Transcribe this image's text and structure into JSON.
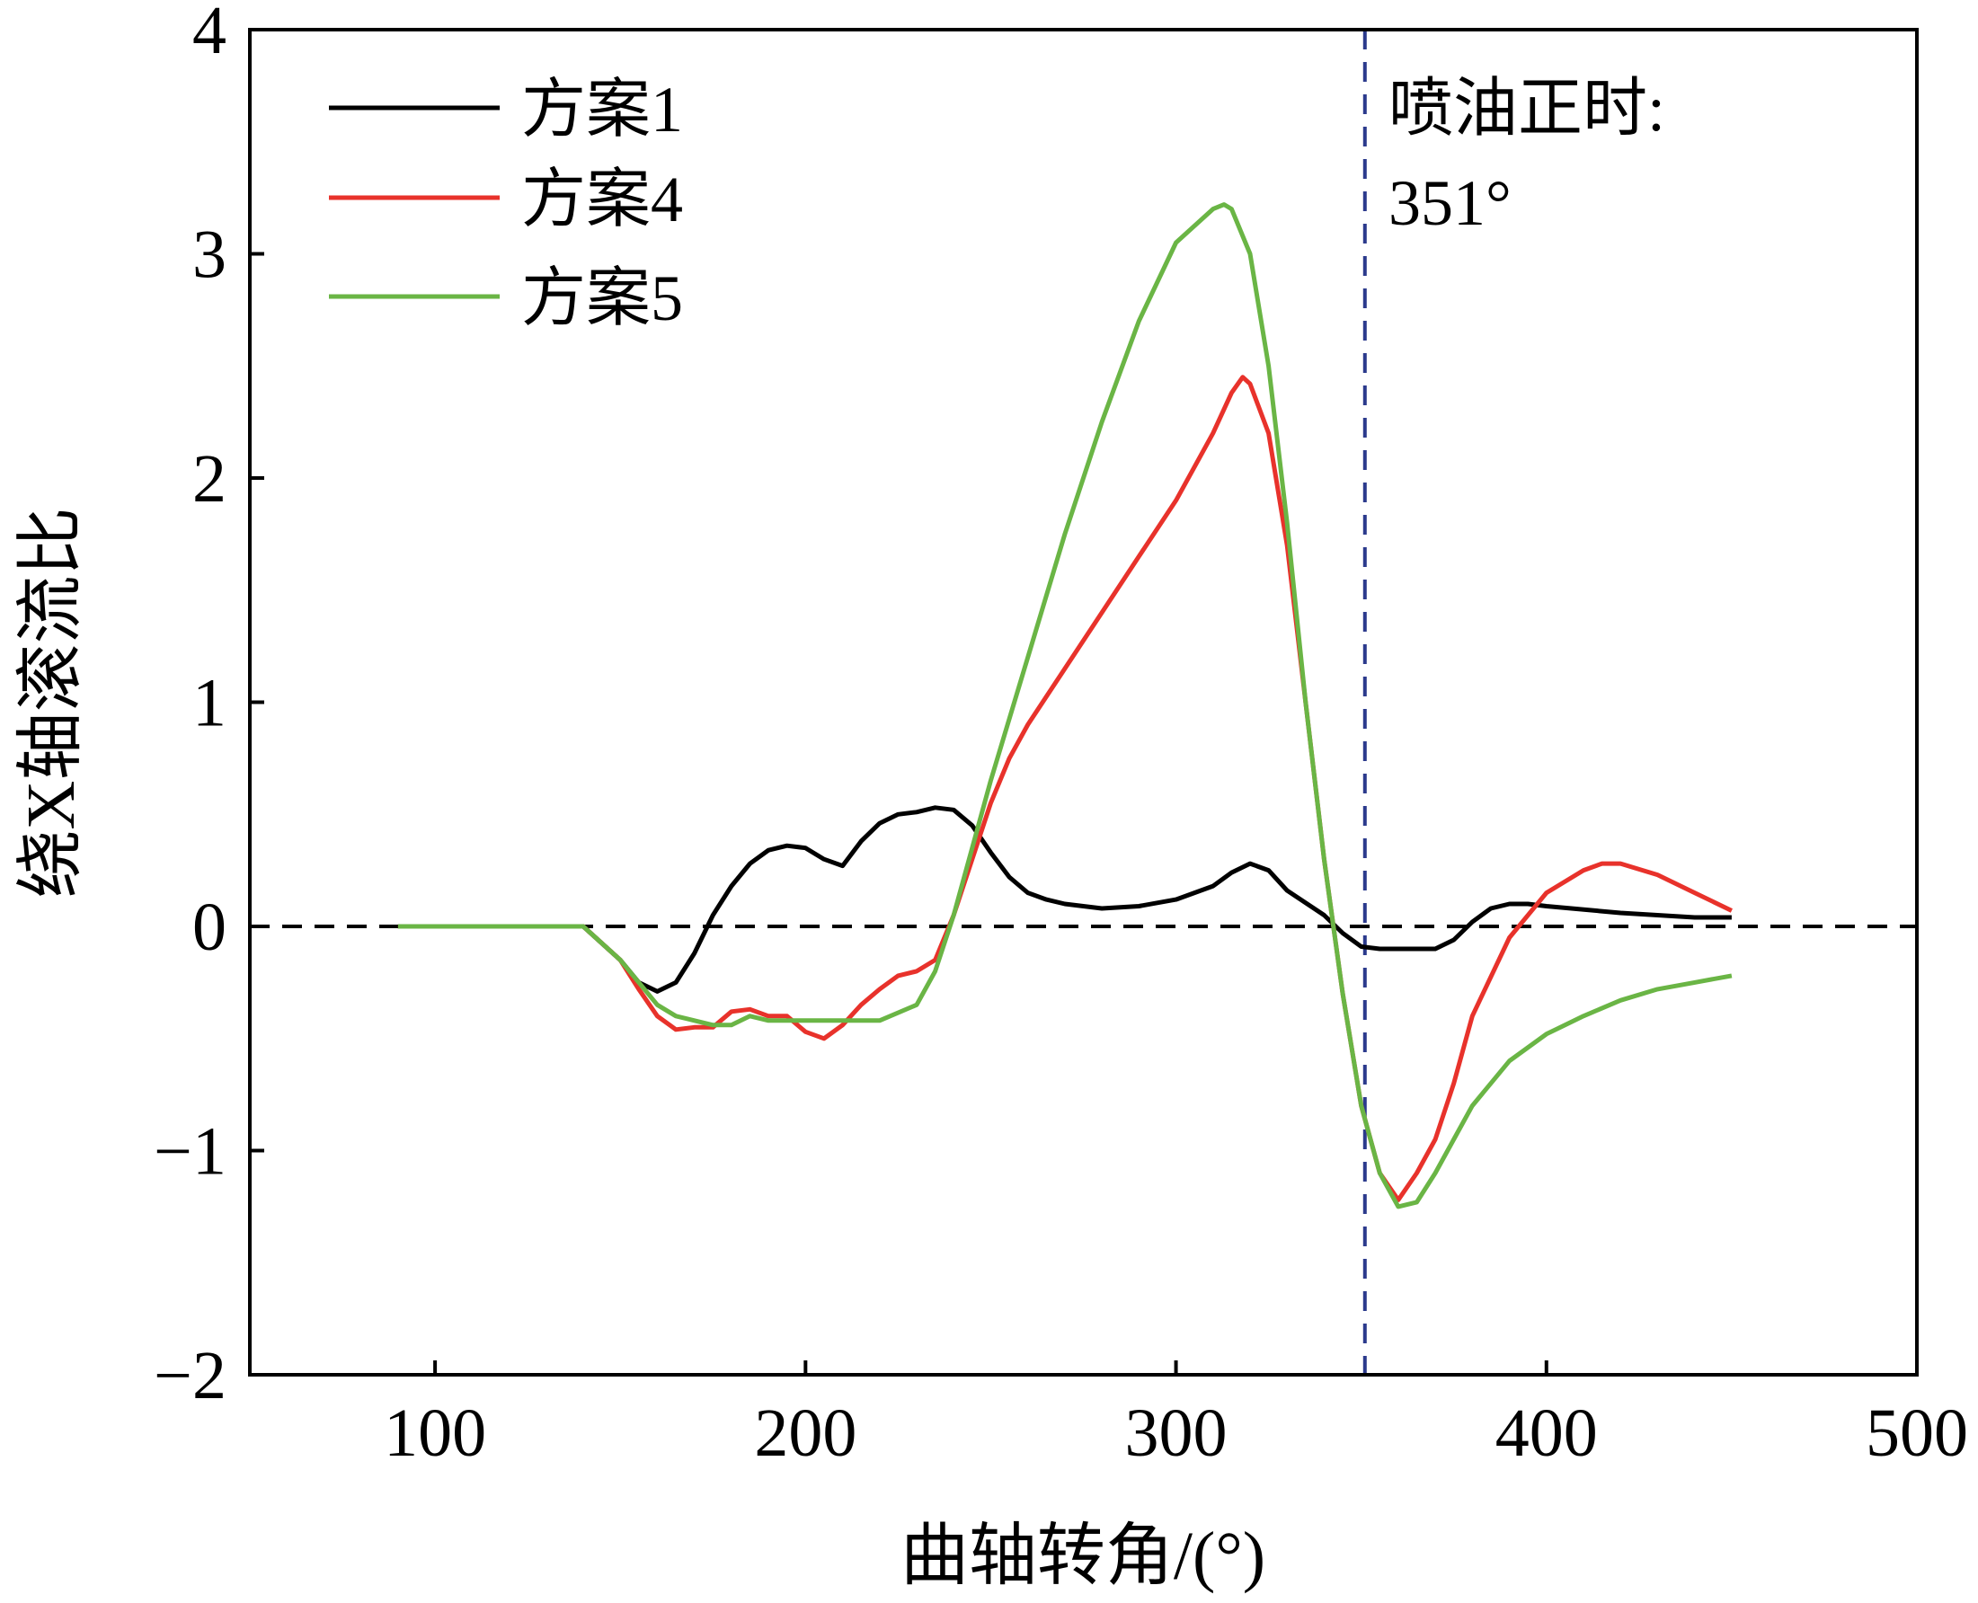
{
  "chart_data": {
    "type": "line",
    "title": "",
    "xlabel": "曲轴转角/(°)",
    "ylabel": "绕X轴滚流比",
    "xlim": [
      50,
      500
    ],
    "ylim": [
      -2,
      4
    ],
    "xticks": [
      100,
      200,
      300,
      400,
      500
    ],
    "xtick_labels": [
      "100",
      "200",
      "300",
      "400",
      "500"
    ],
    "yticks": [
      -2,
      -1,
      0,
      1,
      2,
      3,
      4
    ],
    "ytick_labels": [
      "−2",
      "−1",
      "0",
      "1",
      "2",
      "3",
      "4"
    ],
    "grid": false,
    "legend_position": "top-left",
    "reference_lines": [
      {
        "orientation": "horizontal",
        "value": 0,
        "style": "dashed",
        "color": "#000000"
      },
      {
        "orientation": "vertical",
        "value": 351,
        "style": "dashed",
        "color": "#2b3a8c"
      }
    ],
    "annotation": {
      "line1": "喷油正时:",
      "line2": "351°"
    },
    "series": [
      {
        "name": "方案1",
        "color": "#000000",
        "x": [
          90,
          140,
          150,
          155,
          160,
          165,
          170,
          175,
          180,
          185,
          190,
          195,
          200,
          205,
          210,
          215,
          220,
          225,
          230,
          235,
          240,
          245,
          250,
          255,
          260,
          265,
          270,
          280,
          290,
          300,
          310,
          315,
          320,
          325,
          330,
          340,
          345,
          350,
          355,
          360,
          365,
          370,
          375,
          380,
          385,
          390,
          395,
          400,
          420,
          440,
          450
        ],
        "y": [
          0,
          0,
          -0.15,
          -0.25,
          -0.29,
          -0.25,
          -0.12,
          0.05,
          0.18,
          0.28,
          0.34,
          0.36,
          0.35,
          0.3,
          0.27,
          0.38,
          0.46,
          0.5,
          0.51,
          0.53,
          0.52,
          0.45,
          0.33,
          0.22,
          0.15,
          0.12,
          0.1,
          0.08,
          0.09,
          0.12,
          0.18,
          0.24,
          0.28,
          0.25,
          0.16,
          0.05,
          -0.03,
          -0.09,
          -0.1,
          -0.1,
          -0.1,
          -0.1,
          -0.06,
          0.02,
          0.08,
          0.1,
          0.1,
          0.09,
          0.06,
          0.04,
          0.04
        ]
      },
      {
        "name": "方案4",
        "color": "#e8322b",
        "x": [
          90,
          140,
          150,
          155,
          160,
          165,
          170,
          175,
          180,
          185,
          190,
          195,
          200,
          205,
          210,
          215,
          220,
          225,
          230,
          235,
          240,
          245,
          250,
          255,
          260,
          270,
          280,
          290,
          300,
          310,
          315,
          318,
          320,
          325,
          330,
          335,
          340,
          345,
          350,
          355,
          360,
          365,
          370,
          375,
          380,
          390,
          400,
          410,
          415,
          420,
          430,
          440,
          450
        ],
        "y": [
          0,
          0,
          -0.15,
          -0.28,
          -0.4,
          -0.46,
          -0.45,
          -0.45,
          -0.38,
          -0.37,
          -0.4,
          -0.4,
          -0.47,
          -0.5,
          -0.44,
          -0.35,
          -0.28,
          -0.22,
          -0.2,
          -0.15,
          0.05,
          0.3,
          0.55,
          0.75,
          0.9,
          1.15,
          1.4,
          1.65,
          1.9,
          2.2,
          2.38,
          2.45,
          2.42,
          2.2,
          1.7,
          1.0,
          0.3,
          -0.3,
          -0.8,
          -1.1,
          -1.22,
          -1.1,
          -0.95,
          -0.7,
          -0.4,
          -0.05,
          0.15,
          0.25,
          0.28,
          0.28,
          0.23,
          0.15,
          0.07
        ]
      },
      {
        "name": "方案5",
        "color": "#6ab545",
        "x": [
          90,
          140,
          150,
          155,
          160,
          165,
          170,
          175,
          180,
          185,
          190,
          200,
          210,
          220,
          230,
          235,
          240,
          245,
          250,
          260,
          270,
          280,
          290,
          300,
          310,
          313,
          315,
          320,
          325,
          330,
          335,
          340,
          345,
          350,
          355,
          360,
          365,
          370,
          375,
          380,
          390,
          400,
          410,
          420,
          430,
          440,
          450
        ],
        "y": [
          0,
          0,
          -0.15,
          -0.25,
          -0.35,
          -0.4,
          -0.42,
          -0.44,
          -0.44,
          -0.4,
          -0.42,
          -0.42,
          -0.42,
          -0.42,
          -0.35,
          -0.2,
          0.05,
          0.35,
          0.65,
          1.2,
          1.75,
          2.25,
          2.7,
          3.05,
          3.2,
          3.22,
          3.2,
          3.0,
          2.5,
          1.8,
          1.0,
          0.3,
          -0.3,
          -0.8,
          -1.1,
          -1.25,
          -1.23,
          -1.1,
          -0.95,
          -0.8,
          -0.6,
          -0.48,
          -0.4,
          -0.33,
          -0.28,
          -0.25,
          -0.22
        ]
      }
    ]
  }
}
